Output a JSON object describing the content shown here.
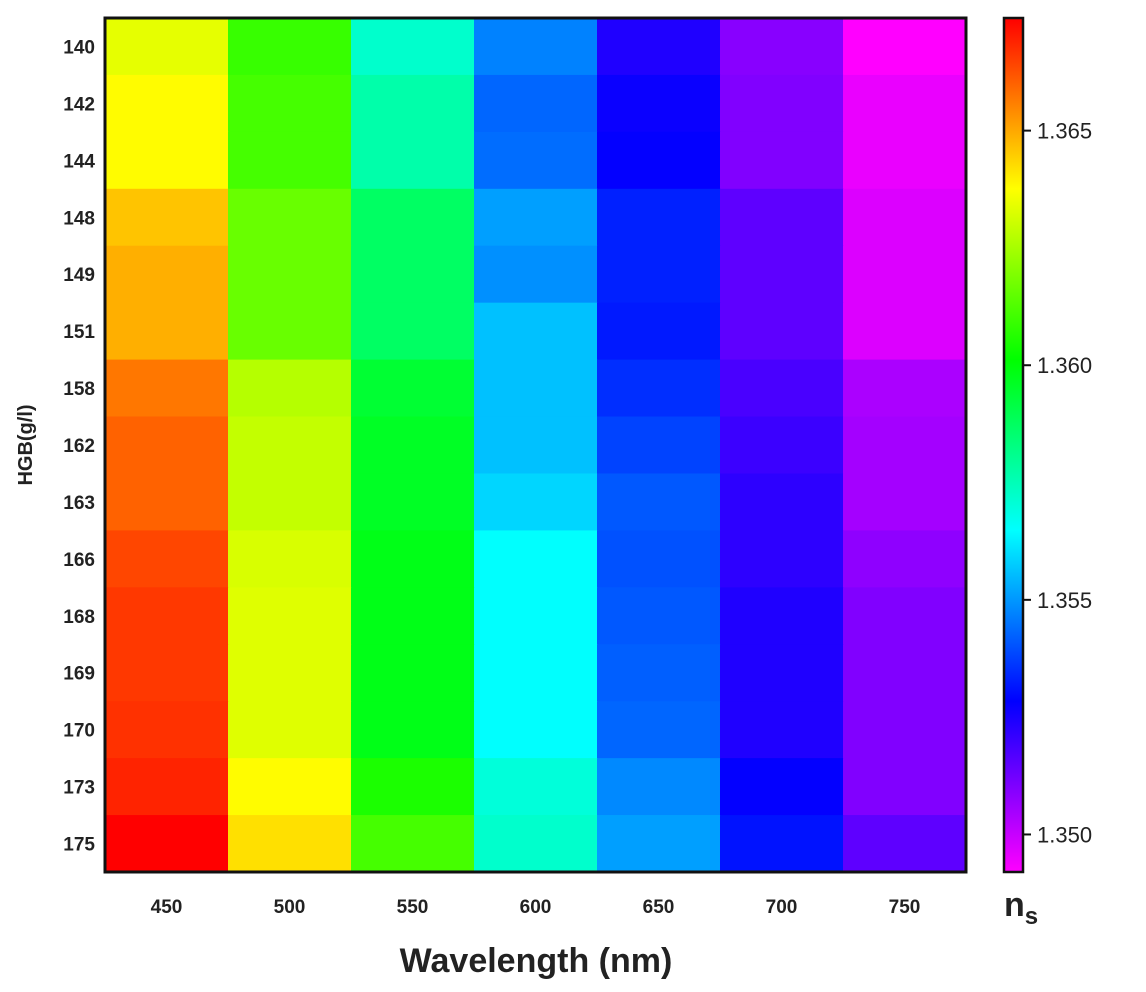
{
  "chart_data": {
    "type": "heatmap",
    "xlabel": "Wavelength (nm)",
    "ylabel": "HGB(g/l)",
    "colorbar_label": "n",
    "colorbar_label_subscript": "s",
    "x_categories": [
      "450",
      "500",
      "550",
      "600",
      "650",
      "700",
      "750"
    ],
    "y_categories": [
      "140",
      "142",
      "144",
      "148",
      "149",
      "151",
      "158",
      "162",
      "163",
      "166",
      "168",
      "169",
      "170",
      "173",
      "175"
    ],
    "colorbar_ticks": [
      "1.350",
      "1.355",
      "1.360",
      "1.365"
    ],
    "zlim": [
      1.3492,
      1.3674
    ],
    "colormap": "rainbow magenta-blue-cyan-green-yellow-red (low to high)",
    "grid": false,
    "values": [
      [
        1.3634,
        1.3609,
        1.3572,
        1.3547,
        1.3524,
        1.3509,
        1.3492
      ],
      [
        1.3638,
        1.3611,
        1.3577,
        1.3543,
        1.3527,
        1.351,
        1.3495
      ],
      [
        1.3638,
        1.3611,
        1.3577,
        1.3544,
        1.3528,
        1.351,
        1.3495
      ],
      [
        1.3646,
        1.3616,
        1.3587,
        1.3551,
        1.3533,
        1.3515,
        1.3497
      ],
      [
        1.3649,
        1.3616,
        1.3587,
        1.3549,
        1.3533,
        1.3515,
        1.3497
      ],
      [
        1.3649,
        1.3616,
        1.3587,
        1.3556,
        1.3532,
        1.3515,
        1.3497
      ],
      [
        1.3657,
        1.3627,
        1.3594,
        1.3556,
        1.3535,
        1.3518,
        1.3504
      ],
      [
        1.366,
        1.3629,
        1.3596,
        1.3556,
        1.3538,
        1.352,
        1.3505
      ],
      [
        1.366,
        1.3629,
        1.3596,
        1.3559,
        1.3541,
        1.3522,
        1.3505
      ],
      [
        1.3664,
        1.3632,
        1.3598,
        1.3565,
        1.354,
        1.3522,
        1.3508
      ],
      [
        1.3666,
        1.3633,
        1.3598,
        1.3565,
        1.3541,
        1.3524,
        1.351
      ],
      [
        1.3666,
        1.3633,
        1.3598,
        1.3565,
        1.3542,
        1.3524,
        1.351
      ],
      [
        1.3667,
        1.3633,
        1.3598,
        1.3565,
        1.3543,
        1.3524,
        1.351
      ],
      [
        1.3669,
        1.3638,
        1.3605,
        1.357,
        1.3548,
        1.3528,
        1.351
      ],
      [
        1.3674,
        1.3642,
        1.3611,
        1.3572,
        1.3551,
        1.3531,
        1.3515
      ]
    ]
  }
}
